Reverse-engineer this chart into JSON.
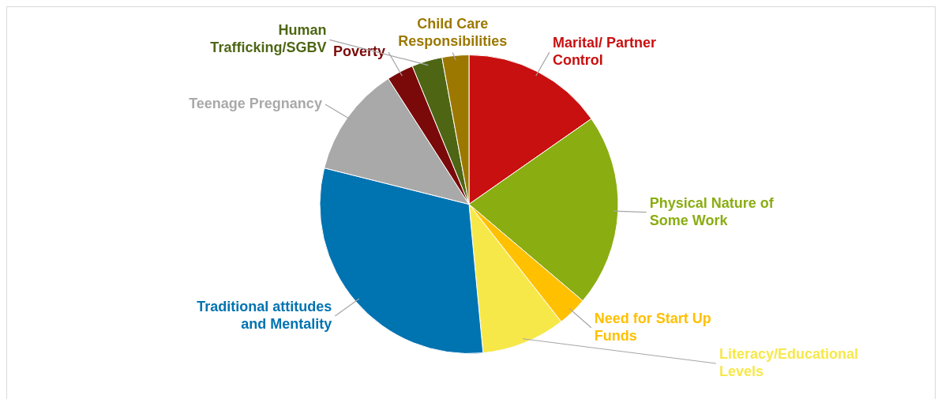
{
  "chart_data": {
    "type": "pie",
    "categories": [
      "Marital/ Partner Control",
      "Physical Nature of Some Work",
      "Need for Start Up Funds",
      "Literacy/Educational Levels",
      "Traditional attitudes and Mentality",
      "Teenage Pregnancy",
      "Poverty",
      "Human Trafficking/SGBV",
      "Child Care Responsibilities"
    ],
    "values": [
      15.3,
      20.9,
      3.2,
      9.1,
      30.4,
      12,
      2.9,
      3.3,
      2.9
    ],
    "colors": [
      "#c81010",
      "#8aad12",
      "#ffc000",
      "#f7e84a",
      "#0073b1",
      "#a9a9a9",
      "#7a0a0a",
      "#4e6614",
      "#9c7800"
    ],
    "legend": false
  }
}
